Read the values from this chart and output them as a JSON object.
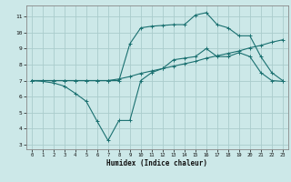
{
  "xlabel": "Humidex (Indice chaleur)",
  "bg_color": "#cce8e8",
  "grid_color": "#aacccc",
  "line_color": "#1a7070",
  "xlim": [
    -0.5,
    23.5
  ],
  "ylim": [
    2.7,
    11.7
  ],
  "xticks": [
    0,
    1,
    2,
    3,
    4,
    5,
    6,
    7,
    8,
    9,
    10,
    11,
    12,
    13,
    14,
    15,
    16,
    17,
    18,
    19,
    20,
    21,
    22,
    23
  ],
  "yticks": [
    3,
    4,
    5,
    6,
    7,
    8,
    9,
    10,
    11
  ],
  "line1_x": [
    0,
    1,
    2,
    3,
    4,
    5,
    6,
    7,
    8,
    9,
    10,
    11,
    12,
    13,
    14,
    15,
    16,
    17,
    18,
    19,
    20,
    21,
    22,
    23
  ],
  "line1_y": [
    7.0,
    6.95,
    6.85,
    6.65,
    6.2,
    5.7,
    4.45,
    3.25,
    4.5,
    4.5,
    7.0,
    7.5,
    7.75,
    8.3,
    8.4,
    8.5,
    9.0,
    8.5,
    8.5,
    8.75,
    8.5,
    7.5,
    7.0,
    6.95
  ],
  "line2_x": [
    0,
    1,
    2,
    3,
    4,
    5,
    6,
    7,
    8,
    9,
    10,
    11,
    12,
    13,
    14,
    15,
    16,
    17,
    18,
    19,
    20,
    21,
    22,
    23
  ],
  "line2_y": [
    7.0,
    7.0,
    7.0,
    7.0,
    7.0,
    7.0,
    7.0,
    7.0,
    7.1,
    7.25,
    7.45,
    7.6,
    7.75,
    7.9,
    8.05,
    8.2,
    8.4,
    8.55,
    8.7,
    8.85,
    9.05,
    9.2,
    9.4,
    9.55
  ],
  "line3_x": [
    0,
    1,
    2,
    3,
    4,
    5,
    6,
    7,
    8,
    9,
    10,
    11,
    12,
    13,
    14,
    15,
    16,
    17,
    18,
    19,
    20,
    21,
    22,
    23
  ],
  "line3_y": [
    7.0,
    7.0,
    7.0,
    7.0,
    7.0,
    7.0,
    7.0,
    7.0,
    7.0,
    9.3,
    10.3,
    10.4,
    10.45,
    10.5,
    10.5,
    11.1,
    11.25,
    10.5,
    10.3,
    9.8,
    9.8,
    8.5,
    7.5,
    7.0
  ]
}
